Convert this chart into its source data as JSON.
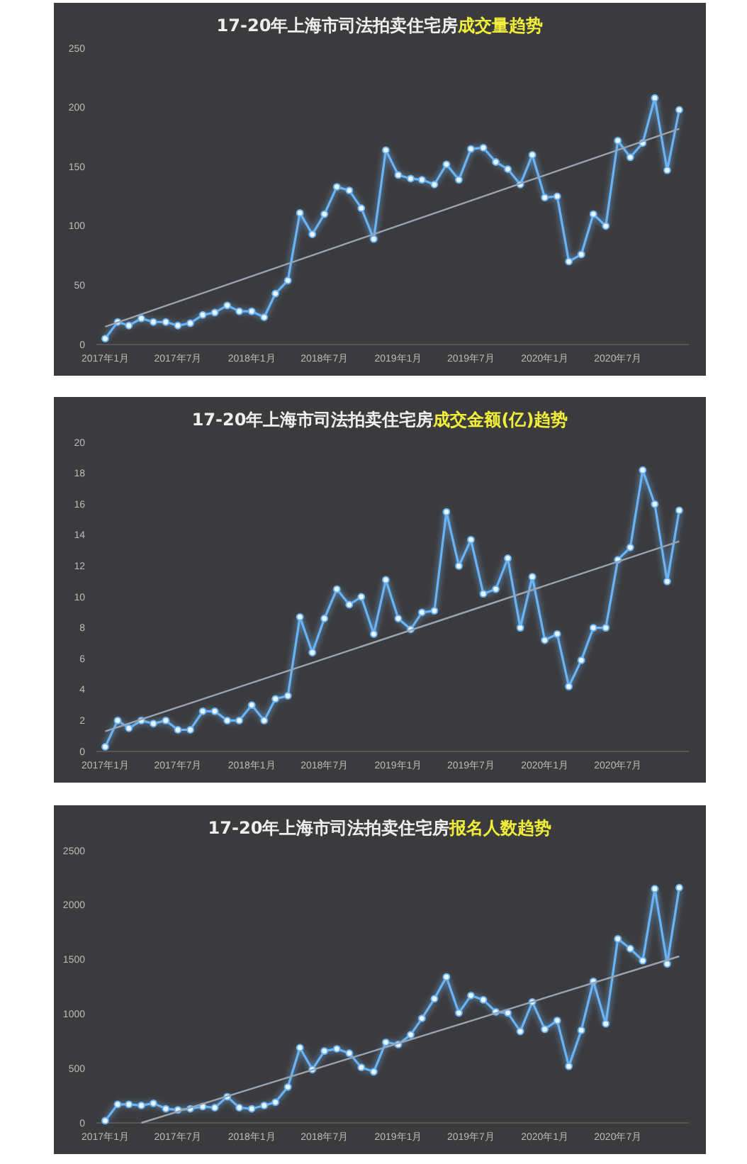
{
  "chart_data": [
    {
      "type": "line",
      "title": "17-20年上海市司法拍卖住宅房",
      "subtitle": "成交量趋势",
      "x": [
        "2017-01",
        "2017-02",
        "2017-03",
        "2017-04",
        "2017-05",
        "2017-06",
        "2017-07",
        "2017-08",
        "2017-09",
        "2017-10",
        "2017-11",
        "2017-12",
        "2018-01",
        "2018-02",
        "2018-03",
        "2018-04",
        "2018-05",
        "2018-06",
        "2018-07",
        "2018-08",
        "2018-09",
        "2018-10",
        "2018-11",
        "2018-12",
        "2019-01",
        "2019-02",
        "2019-03",
        "2019-04",
        "2019-05",
        "2019-06",
        "2019-07",
        "2019-08",
        "2019-09",
        "2019-10",
        "2019-11",
        "2019-12",
        "2020-01",
        "2020-02",
        "2020-03",
        "2020-04",
        "2020-05",
        "2020-06",
        "2020-07",
        "2020-08",
        "2020-09",
        "2020-10",
        "2020-11",
        "2020-12"
      ],
      "series": [
        {
          "color": "#6ab4f5",
          "values": [
            5,
            19,
            16,
            22,
            19,
            19,
            16,
            18,
            25,
            27,
            33,
            28,
            28,
            23,
            43,
            54,
            111,
            93,
            110,
            133,
            130,
            115,
            89,
            164,
            143,
            140,
            139,
            135,
            152,
            139,
            165,
            166,
            154,
            148,
            135,
            160,
            124,
            125,
            70,
            76,
            110,
            100,
            172,
            158,
            170,
            208,
            147,
            198
          ]
        },
        {
          "type": "line",
          "color": "#9aa3b0",
          "marker": "none",
          "x": [
            "2017-01",
            "2020-12"
          ],
          "values": [
            15,
            182
          ]
        }
      ],
      "xlim": [
        "2016-12-10",
        "2020-12-25"
      ],
      "ylim": [
        0,
        250
      ],
      "yticks": [
        0,
        50,
        100,
        150,
        200,
        250
      ],
      "xticks": [
        {
          "value": "2017-01",
          "label": "2017年1月"
        },
        {
          "value": "2017-07",
          "label": "2017年7月"
        },
        {
          "value": "2018-01",
          "label": "2018年1月"
        },
        {
          "value": "2018-07",
          "label": "2018年7月"
        },
        {
          "value": "2019-01",
          "label": "2019年1月"
        },
        {
          "value": "2019-07",
          "label": "2019年7月"
        },
        {
          "value": "2020-01",
          "label": "2020年1月"
        },
        {
          "value": "2020-07",
          "label": "2020年7月"
        }
      ],
      "marker": "circle",
      "grid": false
    },
    {
      "type": "line",
      "title": "17-20年上海市司法拍卖住宅房",
      "subtitle": "成交金额(亿)趋势",
      "x": [
        "2017-01",
        "2017-02",
        "2017-03",
        "2017-04",
        "2017-05",
        "2017-06",
        "2017-07",
        "2017-08",
        "2017-09",
        "2017-10",
        "2017-11",
        "2017-12",
        "2018-01",
        "2018-02",
        "2018-03",
        "2018-04",
        "2018-05",
        "2018-06",
        "2018-07",
        "2018-08",
        "2018-09",
        "2018-10",
        "2018-11",
        "2018-12",
        "2019-01",
        "2019-02",
        "2019-03",
        "2019-04",
        "2019-05",
        "2019-06",
        "2019-07",
        "2019-08",
        "2019-09",
        "2019-10",
        "2019-11",
        "2019-12",
        "2020-01",
        "2020-02",
        "2020-03",
        "2020-04",
        "2020-05",
        "2020-06",
        "2020-07",
        "2020-08",
        "2020-09",
        "2020-10",
        "2020-11",
        "2020-12"
      ],
      "series": [
        {
          "color": "#6ab4f5",
          "values": [
            0.3,
            2.0,
            1.5,
            2.0,
            1.8,
            2.0,
            1.4,
            1.4,
            2.6,
            2.6,
            2.0,
            2.0,
            3.0,
            2.0,
            3.4,
            3.6,
            8.7,
            6.4,
            8.6,
            10.5,
            9.5,
            10.0,
            7.6,
            11.1,
            8.6,
            7.9,
            9.0,
            9.1,
            15.5,
            12.0,
            13.7,
            10.2,
            10.5,
            12.5,
            8.0,
            11.3,
            7.2,
            7.6,
            4.2,
            5.9,
            8.0,
            8.0,
            12.4,
            13.2,
            18.2,
            16.0,
            11.0,
            15.6
          ]
        },
        {
          "type": "line",
          "color": "#9aa3b0",
          "marker": "none",
          "x": [
            "2017-01",
            "2020-12"
          ],
          "values": [
            1.3,
            13.6
          ]
        }
      ],
      "xlim": [
        "2016-12-10",
        "2020-12-25"
      ],
      "ylim": [
        0,
        20
      ],
      "yticks": [
        0,
        2,
        4,
        6,
        8,
        10,
        12,
        14,
        16,
        18,
        20
      ],
      "xticks": [
        {
          "value": "2017-01",
          "label": "2017年1月"
        },
        {
          "value": "2017-07",
          "label": "2017年7月"
        },
        {
          "value": "2018-01",
          "label": "2018年1月"
        },
        {
          "value": "2018-07",
          "label": "2018年7月"
        },
        {
          "value": "2019-01",
          "label": "2019年1月"
        },
        {
          "value": "2019-07",
          "label": "2019年7月"
        },
        {
          "value": "2020-01",
          "label": "2020年1月"
        },
        {
          "value": "2020-07",
          "label": "2020年7月"
        }
      ],
      "marker": "circle",
      "grid": false
    },
    {
      "type": "line",
      "title": "17-20年上海市司法拍卖住宅房",
      "subtitle": "报名人数趋势",
      "x": [
        "2017-01",
        "2017-02",
        "2017-03",
        "2017-04",
        "2017-05",
        "2017-06",
        "2017-07",
        "2017-08",
        "2017-09",
        "2017-10",
        "2017-11",
        "2017-12",
        "2018-01",
        "2018-02",
        "2018-03",
        "2018-04",
        "2018-05",
        "2018-06",
        "2018-07",
        "2018-08",
        "2018-09",
        "2018-10",
        "2018-11",
        "2018-12",
        "2019-01",
        "2019-02",
        "2019-03",
        "2019-04",
        "2019-05",
        "2019-06",
        "2019-07",
        "2019-08",
        "2019-09",
        "2019-10",
        "2019-11",
        "2019-12",
        "2020-01",
        "2020-02",
        "2020-03",
        "2020-04",
        "2020-05",
        "2020-06",
        "2020-07",
        "2020-08",
        "2020-09",
        "2020-10",
        "2020-11",
        "2020-12"
      ],
      "series": [
        {
          "color": "#6ab4f5",
          "values": [
            20,
            170,
            170,
            160,
            180,
            130,
            120,
            130,
            150,
            140,
            240,
            140,
            130,
            160,
            190,
            330,
            690,
            490,
            660,
            680,
            640,
            510,
            470,
            740,
            720,
            810,
            960,
            1140,
            1340,
            1010,
            1170,
            1130,
            1020,
            1010,
            840,
            1110,
            860,
            940,
            520,
            850,
            1300,
            910,
            1690,
            1600,
            1490,
            2150,
            1460,
            2160
          ]
        },
        {
          "type": "line",
          "color": "#9aa3b0",
          "marker": "none",
          "x": [
            "2017-04",
            "2020-12"
          ],
          "values": [
            0,
            1530
          ]
        }
      ],
      "xlim": [
        "2016-12-10",
        "2020-12-25"
      ],
      "ylim": [
        0,
        2500
      ],
      "yticks": [
        0,
        500,
        1000,
        1500,
        2000,
        2500
      ],
      "xticks": [
        {
          "value": "2017-01",
          "label": "2017年1月"
        },
        {
          "value": "2017-07",
          "label": "2017年7月"
        },
        {
          "value": "2018-01",
          "label": "2018年1月"
        },
        {
          "value": "2018-07",
          "label": "2018年7月"
        },
        {
          "value": "2019-01",
          "label": "2019年1月"
        },
        {
          "value": "2019-07",
          "label": "2019年7月"
        },
        {
          "value": "2020-01",
          "label": "2020年1月"
        },
        {
          "value": "2020-07",
          "label": "2020年7月"
        }
      ],
      "marker": "circle",
      "grid": false
    }
  ]
}
